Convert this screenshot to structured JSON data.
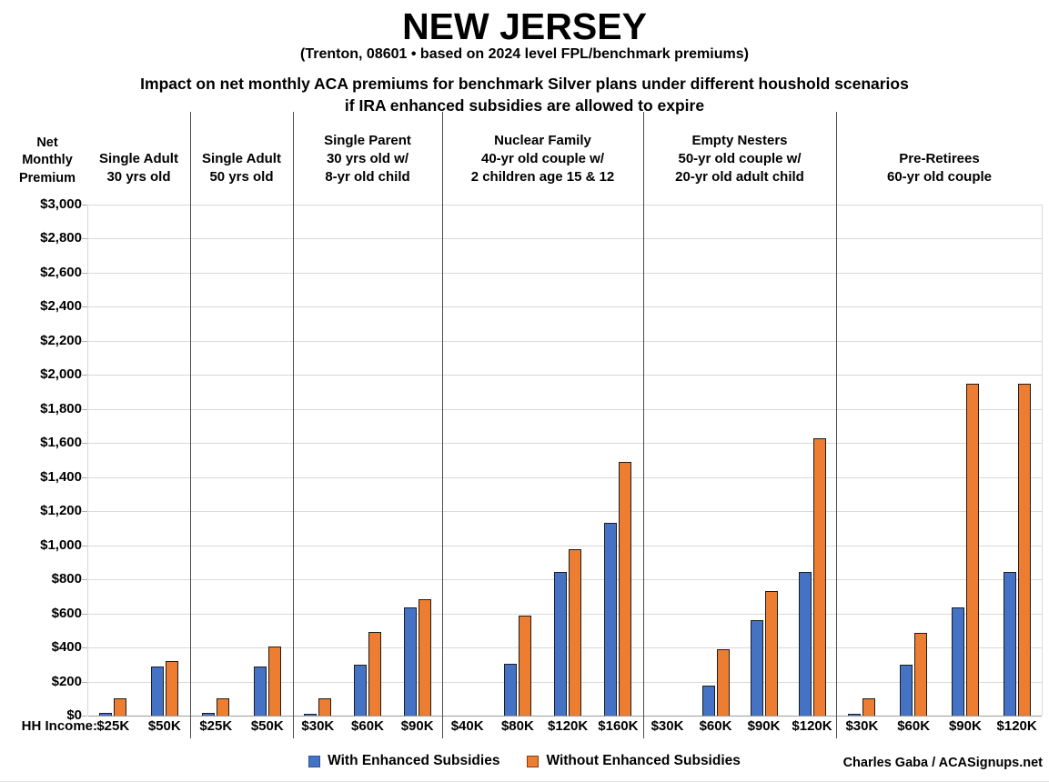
{
  "title": "NEW JERSEY",
  "subtitle": "(Trenton, 08601 • based on 2024 level FPL/benchmark premiums)",
  "description_line1": "Impact on net monthly ACA premiums for benchmark Silver plans under different houshold scenarios",
  "description_line2": "if IRA enhanced subsidies are allowed to expire",
  "y_axis_title_lines": [
    "Net",
    "Monthly",
    "Premium"
  ],
  "hh_income_label": "HH Income:",
  "credit": "Charles Gaba / ACASignups.net",
  "legend": [
    {
      "label": "With Enhanced Subsidies",
      "color": "#4472C4",
      "border": "#2F528F"
    },
    {
      "label": "Without Enhanced Subsidies",
      "color": "#ED7D31",
      "border": "#843C0C"
    }
  ],
  "chart_data": {
    "type": "bar",
    "title": "Impact on net monthly ACA premiums for benchmark Silver plans under different houshold scenarios if IRA enhanced subsidies are allowed to expire",
    "ylabel": "Net Monthly Premium",
    "ylim": [
      0,
      3000
    ],
    "ytick_step": 200,
    "grid": true,
    "legend_position": "bottom",
    "series_names": [
      "With Enhanced Subsidies",
      "Without Enhanced Subsidies"
    ],
    "colors": {
      "with": "#4472C4",
      "without": "#ED7D31"
    },
    "groups": [
      {
        "header": [
          "Single Adult",
          "30 yrs old"
        ],
        "incomes": [
          "$25K",
          "$50K"
        ],
        "with": [
          15,
          290
        ],
        "without": [
          100,
          320
        ]
      },
      {
        "header": [
          "Single Adult",
          "50 yrs old"
        ],
        "incomes": [
          "$25K",
          "$50K"
        ],
        "with": [
          15,
          290
        ],
        "without": [
          100,
          405
        ]
      },
      {
        "header": [
          "Single Parent",
          "30 yrs old w/",
          "8-yr old child"
        ],
        "incomes": [
          "$30K",
          "$60K",
          "$90K"
        ],
        "with": [
          5,
          300,
          635
        ],
        "without": [
          100,
          490,
          685
        ]
      },
      {
        "header": [
          "Nuclear Family",
          "40-yr old couple w/",
          "2 children age 15 & 12"
        ],
        "incomes": [
          "$40K",
          "$80K",
          "$120K",
          "$160K"
        ],
        "with": [
          0,
          305,
          845,
          1130
        ],
        "without": [
          0,
          585,
          975,
          1490
        ]
      },
      {
        "header": [
          "Empty Nesters",
          "50-yr old couple w/",
          "20-yr old adult child"
        ],
        "incomes": [
          "$30K",
          "$60K",
          "$90K",
          "$120K"
        ],
        "with": [
          0,
          175,
          560,
          845
        ],
        "without": [
          0,
          390,
          730,
          1630
        ]
      },
      {
        "header": [
          "Pre-Retirees",
          "60-yr old couple"
        ],
        "incomes": [
          "$30K",
          "$60K",
          "$90K",
          "$120K"
        ],
        "with": [
          10,
          300,
          635,
          845
        ],
        "without": [
          100,
          485,
          1950,
          1950
        ]
      }
    ]
  }
}
